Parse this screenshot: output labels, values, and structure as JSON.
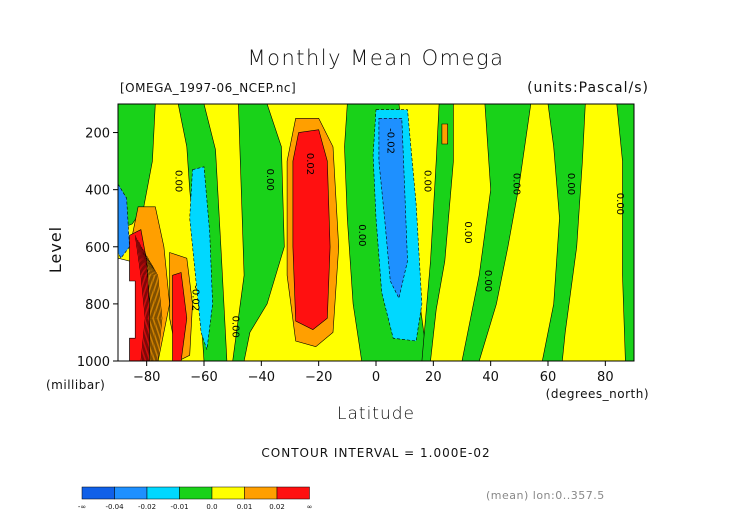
{
  "chart_data": {
    "type": "heatmap",
    "title": "Monthly Mean Omega",
    "file_label": "[OMEGA_1997-06_NCEP.nc]",
    "units_label": "(units:Pascal/s)",
    "xlabel": "Latitude",
    "x_unit_label": "(degrees_north)",
    "ylabel": "Level",
    "y_unit_label": "(millibar)",
    "contour_interval_label": "CONTOUR INTERVAL = 1.000E-02",
    "mean_label": "(mean) lon:0..357.5",
    "xlim": [
      -90,
      90
    ],
    "ylim": [
      1000,
      100
    ],
    "x_ticks": [
      -80,
      -60,
      -40,
      -20,
      0,
      20,
      40,
      60,
      80
    ],
    "x_tick_labels": [
      "−80",
      "−60",
      "−40",
      "−20",
      "0",
      "20",
      "40",
      "60",
      "80"
    ],
    "y_ticks": [
      200,
      400,
      600,
      800,
      1000
    ],
    "y_tick_labels": [
      "200",
      "400",
      "600",
      "800",
      "1000"
    ],
    "colorbar": {
      "labels": [
        "-∞",
        "-0.04",
        "-0.02",
        "-0.01",
        "0.0",
        "0.01",
        "0.02",
        "∞"
      ],
      "colors": [
        "#1060e8",
        "#1e90ff",
        "#00d8ff",
        "#19d219",
        "#ffff00",
        "#ff9f00",
        "#ff1010"
      ]
    },
    "contour_labels": [
      {
        "text": "0.00",
        "x": -70,
        "y": 370
      },
      {
        "text": "0.00",
        "x": -38,
        "y": 365
      },
      {
        "text": "0.02",
        "x": -24,
        "y": 310
      },
      {
        "text": "0.00",
        "x": -6,
        "y": 560
      },
      {
        "text": "-0.02",
        "x": 4,
        "y": 230
      },
      {
        "text": "0.00",
        "x": 17,
        "y": 370
      },
      {
        "text": "0.00",
        "x": 31,
        "y": 550
      },
      {
        "text": "0.00",
        "x": 38,
        "y": 720
      },
      {
        "text": "0.00",
        "x": 48,
        "y": 380
      },
      {
        "text": "0.00",
        "x": 67,
        "y": 380
      },
      {
        "text": "0.00",
        "x": 84,
        "y": 450
      },
      {
        "text": "0.00",
        "x": -50,
        "y": 880
      },
      {
        "text": "-0.02",
        "x": -64,
        "y": 780
      }
    ],
    "regions": [
      {
        "value_class": "positive_0.01_0.02",
        "color": "#ffff00",
        "polygon": [
          [
            -90,
            1000
          ],
          [
            -90,
            100
          ],
          [
            90,
            100
          ],
          [
            90,
            1000
          ]
        ]
      },
      {
        "value_class": "near_zero",
        "color": "#19d219",
        "polygon": [
          [
            -90,
            100
          ],
          [
            -77,
            100
          ],
          [
            -78,
            300
          ],
          [
            -81,
            460
          ],
          [
            -85,
            520
          ],
          [
            -90,
            540
          ]
        ]
      },
      {
        "value_class": "near_zero",
        "color": "#19d219",
        "polygon": [
          [
            -69,
            100
          ],
          [
            -60,
            100
          ],
          [
            -56,
            260
          ],
          [
            -54,
            620
          ],
          [
            -52,
            1000
          ],
          [
            -60,
            1000
          ],
          [
            -62,
            700
          ],
          [
            -65,
            400
          ],
          [
            -66,
            250
          ]
        ]
      },
      {
        "value_class": "near_zero",
        "color": "#19d219",
        "polygon": [
          [
            -48,
            100
          ],
          [
            -38,
            100
          ],
          [
            -33,
            250
          ],
          [
            -32,
            600
          ],
          [
            -38,
            800
          ],
          [
            -44,
            900
          ],
          [
            -46,
            1000
          ],
          [
            -50,
            1000
          ],
          [
            -46,
            700
          ]
        ]
      },
      {
        "value_class": "near_zero",
        "color": "#19d219",
        "polygon": [
          [
            -10,
            100
          ],
          [
            8,
            100
          ],
          [
            11,
            300
          ],
          [
            14,
            700
          ],
          [
            18,
            1000
          ],
          [
            -5,
            1000
          ],
          [
            -8,
            800
          ],
          [
            -10,
            500
          ],
          [
            -11,
            250
          ]
        ]
      },
      {
        "value_class": "near_zero",
        "color": "#19d219",
        "polygon": [
          [
            22,
            100
          ],
          [
            27,
            100
          ],
          [
            27,
            300
          ],
          [
            24,
            650
          ],
          [
            21,
            820
          ],
          [
            19,
            1000
          ],
          [
            16,
            1000
          ],
          [
            19,
            650
          ],
          [
            21,
            300
          ]
        ]
      },
      {
        "value_class": "near_zero",
        "color": "#19d219",
        "polygon": [
          [
            38,
            100
          ],
          [
            54,
            100
          ],
          [
            50,
            380
          ],
          [
            46,
            600
          ],
          [
            42,
            800
          ],
          [
            36,
            1000
          ],
          [
            30,
            1000
          ],
          [
            36,
            700
          ],
          [
            40,
            400
          ]
        ]
      },
      {
        "value_class": "near_zero",
        "color": "#19d219",
        "polygon": [
          [
            60,
            100
          ],
          [
            73,
            100
          ],
          [
            72,
            300
          ],
          [
            70,
            600
          ],
          [
            66,
            900
          ],
          [
            65,
            1000
          ],
          [
            58,
            1000
          ],
          [
            62,
            800
          ],
          [
            64,
            500
          ],
          [
            62,
            250
          ]
        ]
      },
      {
        "value_class": "near_zero",
        "color": "#19d219",
        "polygon": [
          [
            84,
            100
          ],
          [
            90,
            100
          ],
          [
            90,
            1000
          ],
          [
            87,
            1000
          ],
          [
            86,
            700
          ],
          [
            86,
            300
          ]
        ]
      },
      {
        "value_class": "negative_-0.02_-0.01",
        "color": "#00d8ff",
        "polygon": [
          [
            -64,
            330
          ],
          [
            -60,
            320
          ],
          [
            -58,
            550
          ],
          [
            -57,
            800
          ],
          [
            -59,
            960
          ],
          [
            -61,
            900
          ],
          [
            -63,
            700
          ],
          [
            -65,
            500
          ]
        ]
      },
      {
        "value_class": "negative_-0.02_-0.01",
        "color": "#00d8ff",
        "polygon": [
          [
            0,
            120
          ],
          [
            11,
            120
          ],
          [
            14,
            450
          ],
          [
            16,
            800
          ],
          [
            14,
            930
          ],
          [
            6,
            920
          ],
          [
            2,
            760
          ],
          [
            0,
            500
          ],
          [
            -1,
            280
          ]
        ]
      },
      {
        "value_class": "negative_-0.04_-0.02",
        "color": "#1e90ff",
        "polygon": [
          [
            1,
            150
          ],
          [
            9,
            150
          ],
          [
            10,
            400
          ],
          [
            11,
            650
          ],
          [
            8,
            780
          ],
          [
            5,
            720
          ],
          [
            3,
            500
          ],
          [
            1,
            300
          ]
        ]
      },
      {
        "value_class": "negative_-0.04_-0.02",
        "color": "#1e90ff",
        "polygon": [
          [
            -90,
            380
          ],
          [
            -87,
            430
          ],
          [
            -86,
            600
          ],
          [
            -89,
            640
          ],
          [
            -90,
            620
          ]
        ]
      },
      {
        "value_class": "positive_0.02_up",
        "color": "#ff9f00",
        "polygon": [
          [
            -83,
            460
          ],
          [
            -77,
            460
          ],
          [
            -74,
            600
          ],
          [
            -72,
            800
          ],
          [
            -76,
            1000
          ],
          [
            -86,
            1000
          ],
          [
            -86,
            700
          ],
          [
            -85,
            560
          ]
        ]
      },
      {
        "value_class": "positive_0.02_up",
        "color": "#ff9f00",
        "polygon": [
          [
            -72,
            620
          ],
          [
            -66,
            640
          ],
          [
            -64,
            800
          ],
          [
            -65,
            980
          ],
          [
            -69,
            1000
          ],
          [
            -72,
            850
          ]
        ]
      },
      {
        "value_class": "positive_0.02_up",
        "color": "#ff9f00",
        "polygon": [
          [
            -28,
            150
          ],
          [
            -20,
            150
          ],
          [
            -15,
            250
          ],
          [
            -13,
            600
          ],
          [
            -15,
            900
          ],
          [
            -21,
            950
          ],
          [
            -28,
            930
          ],
          [
            -31,
            700
          ],
          [
            -31,
            300
          ]
        ]
      },
      {
        "value_class": "positive_0.02_up",
        "color": "#ff9f00",
        "polygon": [
          [
            23,
            170
          ],
          [
            25,
            170
          ],
          [
            25,
            240
          ],
          [
            23,
            240
          ]
        ]
      },
      {
        "value_class": "positive_0.03_up",
        "color": "#ff1010",
        "polygon": [
          [
            -27,
            200
          ],
          [
            -20,
            190
          ],
          [
            -17,
            300
          ],
          [
            -16,
            600
          ],
          [
            -17,
            850
          ],
          [
            -22,
            890
          ],
          [
            -28,
            860
          ],
          [
            -29,
            600
          ],
          [
            -29,
            300
          ]
        ]
      },
      {
        "value_class": "positive_0.03_up",
        "color": "#ff1010",
        "polygon": [
          [
            -86,
            560
          ],
          [
            -82,
            540
          ],
          [
            -80,
            650
          ],
          [
            -79,
            800
          ],
          [
            -79,
            1000
          ],
          [
            -86,
            1000
          ]
        ]
      },
      {
        "value_class": "positive_0.03_up",
        "color": "#ff1010",
        "polygon": [
          [
            -71,
            700
          ],
          [
            -68,
            690
          ],
          [
            -66,
            850
          ],
          [
            -68,
            1000
          ],
          [
            -71,
            1000
          ]
        ]
      },
      {
        "value_class": "no_data",
        "color": "#ffffff",
        "polygon": [
          [
            -90,
            640
          ],
          [
            -86,
            650
          ],
          [
            -86,
            720
          ],
          [
            -84,
            720
          ],
          [
            -84,
            920
          ],
          [
            -86,
            920
          ],
          [
            -86,
            1000
          ],
          [
            -90,
            1000
          ]
        ]
      }
    ]
  }
}
